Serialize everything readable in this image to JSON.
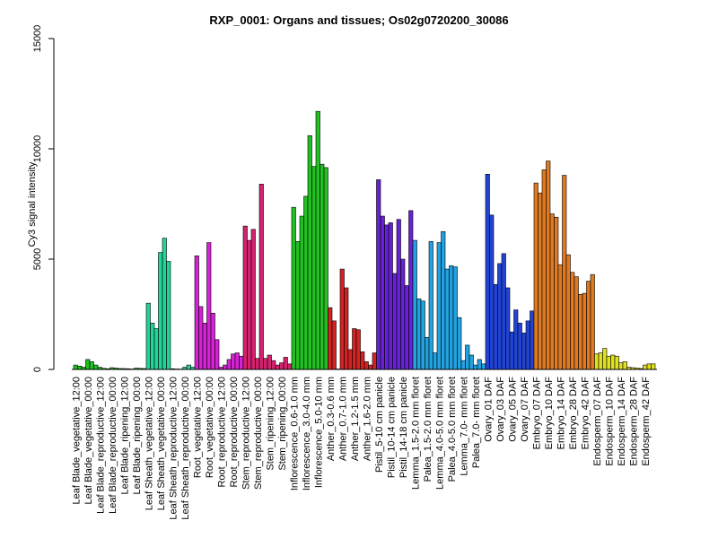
{
  "chart_data": {
    "type": "bar",
    "title": "RXP_0001: Organs and tissues; Os02g0720200_30086",
    "xlabel": "",
    "ylabel": "Cy3 signal intensity",
    "ylim": [
      0,
      15000
    ],
    "yticks": [
      0,
      5000,
      10000,
      15000
    ],
    "ytick_labels": [
      "0",
      "5000",
      "10000",
      "15000"
    ],
    "grid": false,
    "legend": "none",
    "categories": [
      "Leaf Blade_vegetative_12:00",
      "",
      "",
      "Leaf Blade_vegetative_00:00",
      "",
      "",
      "Leaf Blade_reproductive_12:00",
      "",
      "",
      "Leaf Blade_reproductive_00:00",
      "",
      "",
      "Leaf Blade_ripening_12:00",
      "",
      "",
      "Leaf Blade_ripening_00:00",
      "",
      "",
      "Leaf Sheath_vegetative_12:00",
      "",
      "",
      "Leaf Sheath_vegetative_00:00",
      "",
      "",
      "Leaf Sheath_reproductive_12:00",
      "",
      "",
      "Leaf Sheath_reproductive_00:00",
      "",
      "",
      "Root_vegetative_12:00",
      "",
      "",
      "Root_vegetative_00:00",
      "",
      "",
      "Root_reproductive_12:00",
      "",
      "",
      "Root_reproductive_00:00",
      "",
      "",
      "Stem_reproductive_12:00",
      "",
      "",
      "Stem_reproductive_00:00",
      "",
      "",
      "Stem_ripening_12:00",
      "",
      "",
      "Stem_ripening_00:00",
      "",
      "",
      "Inflorescence_0.6-1.0 mm",
      "",
      "",
      "Inflorescence_3.0-4.0 mm",
      "",
      "",
      "Inflorescence_5.0-10 mm",
      "",
      "",
      "Anther_0.3-0.6 mm",
      "",
      "",
      "Anther_0.7-1.0 mm",
      "",
      "",
      "Anther_1.2-1.5 mm",
      "",
      "",
      "Anther_1.6-2.0 mm",
      "",
      "",
      "Pistil_5-10 cm panicle",
      "",
      "",
      "Pistil_10-14 cm panicle",
      "",
      "",
      "Pistil_14-18 cm panicle",
      "",
      "",
      "Lemma_1.5-2.0 mm floret",
      "",
      "",
      "Palea_1.5-2.0 mm floret",
      "",
      "",
      "Lemma_4.0-5.0 mm floret",
      "",
      "",
      "Palea_4.0-5.0 mm floret",
      "",
      "",
      "Lemma_7.0- mm floret",
      "",
      "",
      "Palea_7.0- mm floret",
      "",
      "",
      "Ovary_01 DAF",
      "",
      "",
      "Ovary_03 DAF",
      "",
      "",
      "Ovary_05 DAF",
      "",
      "",
      "Ovary_07 DAF",
      "",
      "",
      "Embryo_07 DAF",
      "",
      "",
      "Embryo_10 DAF",
      "",
      "",
      "Embryo_14 DAF",
      "",
      "",
      "Embryo_28 DAF",
      "",
      "",
      "Embryo_42 DAF",
      "",
      "",
      "Endosperm_07 DAF",
      "",
      "",
      "Endosperm_10 DAF",
      "",
      "",
      "Endosperm_14 DAF",
      "",
      "",
      "Endosperm_28 DAF",
      "",
      "",
      "Endosperm_42 DAF",
      "",
      ""
    ],
    "values": [
      200,
      150,
      100,
      450,
      350,
      200,
      100,
      50,
      30,
      80,
      60,
      40,
      40,
      30,
      20,
      60,
      50,
      40,
      3000,
      2100,
      1850,
      5300,
      5950,
      4900,
      30,
      20,
      15,
      100,
      200,
      100,
      5150,
      2850,
      2100,
      5750,
      2550,
      1350,
      100,
      200,
      450,
      700,
      750,
      600,
      6500,
      5850,
      6350,
      500,
      8400,
      500,
      650,
      400,
      200,
      300,
      550,
      250,
      7350,
      5800,
      6950,
      7850,
      10600,
      9200,
      11700,
      9300,
      9150,
      2800,
      2200,
      20,
      4550,
      3700,
      900,
      1850,
      1800,
      800,
      350,
      200,
      750,
      8600,
      6950,
      6550,
      6650,
      4350,
      6800,
      5000,
      3800,
      7200,
      5850,
      3200,
      3100,
      1450,
      5800,
      750,
      5750,
      6250,
      4550,
      4700,
      4650,
      2350,
      400,
      1100,
      650,
      200,
      450,
      250,
      8850,
      7000,
      3850,
      4800,
      5250,
      3700,
      1700,
      2700,
      2100,
      1650,
      2200,
      2650,
      8450,
      8000,
      9050,
      9450,
      7050,
      6900,
      4750,
      8800,
      5200,
      4400,
      4200,
      3400,
      3450,
      4000,
      4300,
      700,
      750,
      950,
      600,
      650,
      600,
      300,
      350,
      100,
      80,
      60,
      40,
      200,
      250,
      250
    ],
    "group_colors": [
      "#22c022",
      "#22c022",
      "#22c022",
      "#22c022",
      "#22c022",
      "#22c022",
      "#22d49a",
      "#22d49a",
      "#22d49a",
      "#22d49a",
      "#d422d4",
      "#d422d4",
      "#d422d4",
      "#d422d4",
      "#d4226e",
      "#d4226e",
      "#d4226e",
      "#d4226e",
      "#22c022",
      "#22c022",
      "#22c022",
      "#d42222",
      "#d42222",
      "#d42222",
      "#d42222",
      "#6622d4",
      "#6622d4",
      "#6622d4",
      "#22a2e0",
      "#22a2e0",
      "#22a2e0",
      "#22a2e0",
      "#22a2e0",
      "#22a2e0",
      "#2244d4",
      "#2244d4",
      "#2244d4",
      "#2244d4",
      "#e07a22",
      "#e07a22",
      "#e07a22",
      "#e07a22",
      "#e07a22",
      "#e0e022",
      "#e0e022",
      "#e0e022",
      "#e0e022",
      "#e0e022"
    ]
  }
}
